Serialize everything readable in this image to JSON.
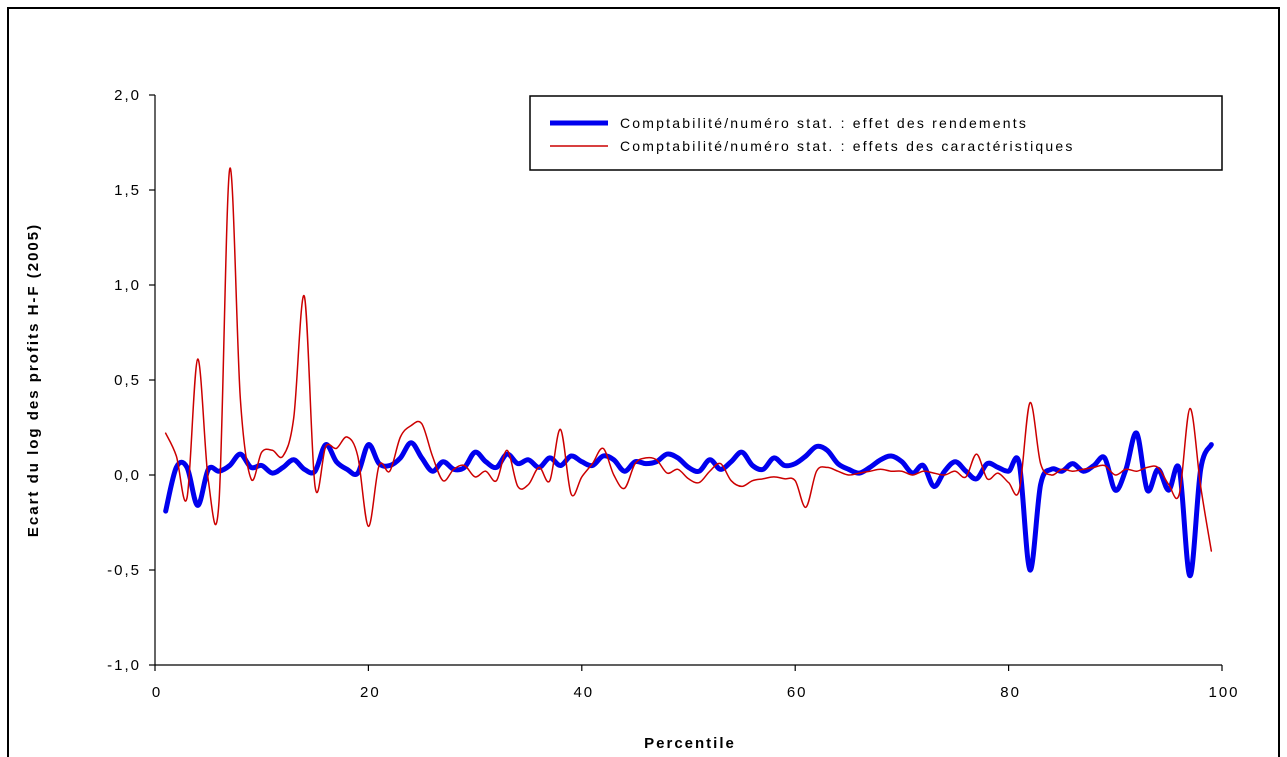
{
  "chart_data": {
    "type": "line",
    "title": "",
    "xlabel": "Percentile",
    "ylabel": "Ecart du log des profits H-F (2005)",
    "xlim": [
      0,
      100
    ],
    "ylim": [
      -1.0,
      2.0
    ],
    "x_ticks": [
      0,
      20,
      40,
      60,
      80,
      100
    ],
    "x_tick_labels": [
      "0",
      "20",
      "40",
      "60",
      "80",
      "100"
    ],
    "y_ticks": [
      -1.0,
      -0.5,
      0.0,
      0.5,
      1.0,
      1.5,
      2.0
    ],
    "y_tick_labels": [
      "-1,0",
      "-0,5",
      "0,0",
      "0,5",
      "1,0",
      "1,5",
      "2,0"
    ],
    "grid": false,
    "legend_position": "top-right",
    "series": [
      {
        "name": "Comptabilité/numéro stat. : effet des rendements",
        "color": "#0000ee",
        "x": [
          1,
          2,
          3,
          4,
          5,
          6,
          7,
          8,
          9,
          10,
          11,
          12,
          13,
          14,
          15,
          16,
          17,
          18,
          19,
          20,
          21,
          22,
          23,
          24,
          25,
          26,
          27,
          28,
          29,
          30,
          31,
          32,
          33,
          34,
          35,
          36,
          37,
          38,
          39,
          40,
          41,
          42,
          43,
          44,
          45,
          46,
          47,
          48,
          49,
          50,
          51,
          52,
          53,
          54,
          55,
          56,
          57,
          58,
          59,
          60,
          61,
          62,
          63,
          64,
          65,
          66,
          67,
          68,
          69,
          70,
          71,
          72,
          73,
          74,
          75,
          76,
          77,
          78,
          79,
          80,
          81,
          82,
          83,
          84,
          85,
          86,
          87,
          88,
          89,
          90,
          91,
          92,
          93,
          94,
          95,
          96,
          97,
          98,
          99
        ],
        "values": [
          -0.19,
          0.04,
          0.04,
          -0.16,
          0.03,
          0.02,
          0.05,
          0.11,
          0.04,
          0.05,
          0.01,
          0.04,
          0.08,
          0.03,
          0.02,
          0.16,
          0.07,
          0.03,
          0.01,
          0.16,
          0.06,
          0.05,
          0.09,
          0.17,
          0.09,
          0.02,
          0.07,
          0.03,
          0.04,
          0.12,
          0.07,
          0.04,
          0.11,
          0.06,
          0.08,
          0.04,
          0.09,
          0.05,
          0.1,
          0.07,
          0.05,
          0.1,
          0.08,
          0.02,
          0.07,
          0.06,
          0.07,
          0.11,
          0.09,
          0.04,
          0.02,
          0.08,
          0.03,
          0.07,
          0.12,
          0.05,
          0.03,
          0.09,
          0.05,
          0.06,
          0.1,
          0.15,
          0.13,
          0.06,
          0.03,
          0.01,
          0.04,
          0.08,
          0.1,
          0.07,
          0.01,
          0.05,
          -0.06,
          0.02,
          0.07,
          0.02,
          -0.02,
          0.06,
          0.04,
          0.02,
          0.06,
          -0.5,
          -0.05,
          0.03,
          0.02,
          0.06,
          0.02,
          0.05,
          0.09,
          -0.08,
          0.03,
          0.22,
          -0.08,
          0.03,
          -0.08,
          0.03,
          -0.53,
          0.03,
          0.16
        ]
      },
      {
        "name": "Comptabilité/numéro stat. : effets des caractéristiques",
        "color": "#cc0000",
        "x": [
          1,
          2,
          3,
          4,
          5,
          6,
          7,
          8,
          9,
          10,
          11,
          12,
          13,
          14,
          15,
          16,
          17,
          18,
          19,
          20,
          21,
          22,
          23,
          24,
          25,
          26,
          27,
          28,
          29,
          30,
          31,
          32,
          33,
          34,
          35,
          36,
          37,
          38,
          39,
          40,
          41,
          42,
          43,
          44,
          45,
          46,
          47,
          48,
          49,
          50,
          51,
          52,
          53,
          54,
          55,
          56,
          57,
          58,
          59,
          60,
          61,
          62,
          63,
          64,
          65,
          66,
          67,
          68,
          69,
          70,
          71,
          72,
          73,
          74,
          75,
          76,
          77,
          78,
          79,
          80,
          81,
          82,
          83,
          84,
          85,
          86,
          87,
          88,
          89,
          90,
          91,
          92,
          93,
          94,
          95,
          96,
          97,
          98,
          99
        ],
        "values": [
          0.22,
          0.1,
          -0.12,
          0.61,
          -0.03,
          -0.14,
          1.61,
          0.4,
          -0.02,
          0.12,
          0.13,
          0.1,
          0.3,
          0.94,
          -0.06,
          0.15,
          0.14,
          0.2,
          0.1,
          -0.27,
          0.05,
          0.02,
          0.2,
          0.26,
          0.27,
          0.1,
          -0.03,
          0.03,
          0.05,
          -0.01,
          0.02,
          -0.03,
          0.13,
          -0.06,
          -0.05,
          0.04,
          -0.03,
          0.24,
          -0.1,
          -0.01,
          0.06,
          0.14,
          0.0,
          -0.07,
          0.06,
          0.09,
          0.08,
          0.01,
          0.03,
          -0.02,
          -0.04,
          0.02,
          0.06,
          -0.03,
          -0.06,
          -0.03,
          -0.02,
          -0.01,
          -0.02,
          -0.03,
          -0.17,
          0.02,
          0.04,
          0.02,
          0.0,
          0.01,
          0.02,
          0.03,
          0.02,
          0.02,
          0.0,
          0.02,
          0.01,
          0.0,
          0.02,
          -0.01,
          0.11,
          -0.02,
          0.01,
          -0.04,
          -0.08,
          0.38,
          0.06,
          0.0,
          0.03,
          0.02,
          0.03,
          0.04,
          0.05,
          0.0,
          0.03,
          0.02,
          0.04,
          0.04,
          -0.05,
          -0.1,
          0.35,
          -0.06,
          -0.4
        ]
      }
    ]
  }
}
